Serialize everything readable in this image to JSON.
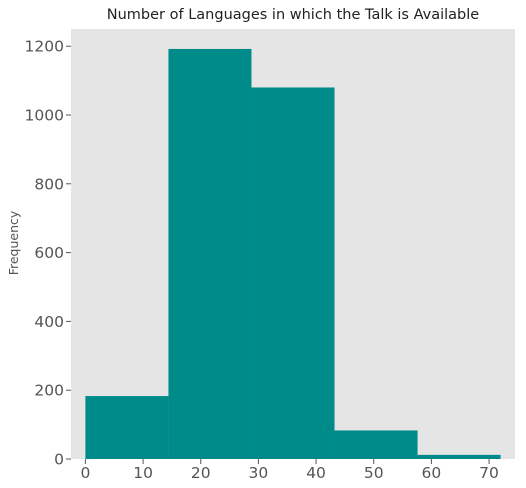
{
  "chart_data": {
    "type": "bar",
    "title": "Number of Languages in which the Talk is Available",
    "xlabel": "",
    "ylabel": "Frequency",
    "xlim": [
      -2.5,
      74.5
    ],
    "ylim": [
      0,
      1250
    ],
    "bin_edges": [
      0,
      14.4,
      28.8,
      43.2,
      57.6,
      72
    ],
    "values": [
      183,
      1192,
      1080,
      83,
      12
    ],
    "xticks": [
      0,
      10,
      20,
      30,
      40,
      50,
      60,
      70
    ],
    "yticks": [
      0,
      200,
      400,
      600,
      800,
      1000,
      1200
    ],
    "grid": false,
    "bar_color": "#008b8b",
    "background_color": "#e5e5e5"
  }
}
